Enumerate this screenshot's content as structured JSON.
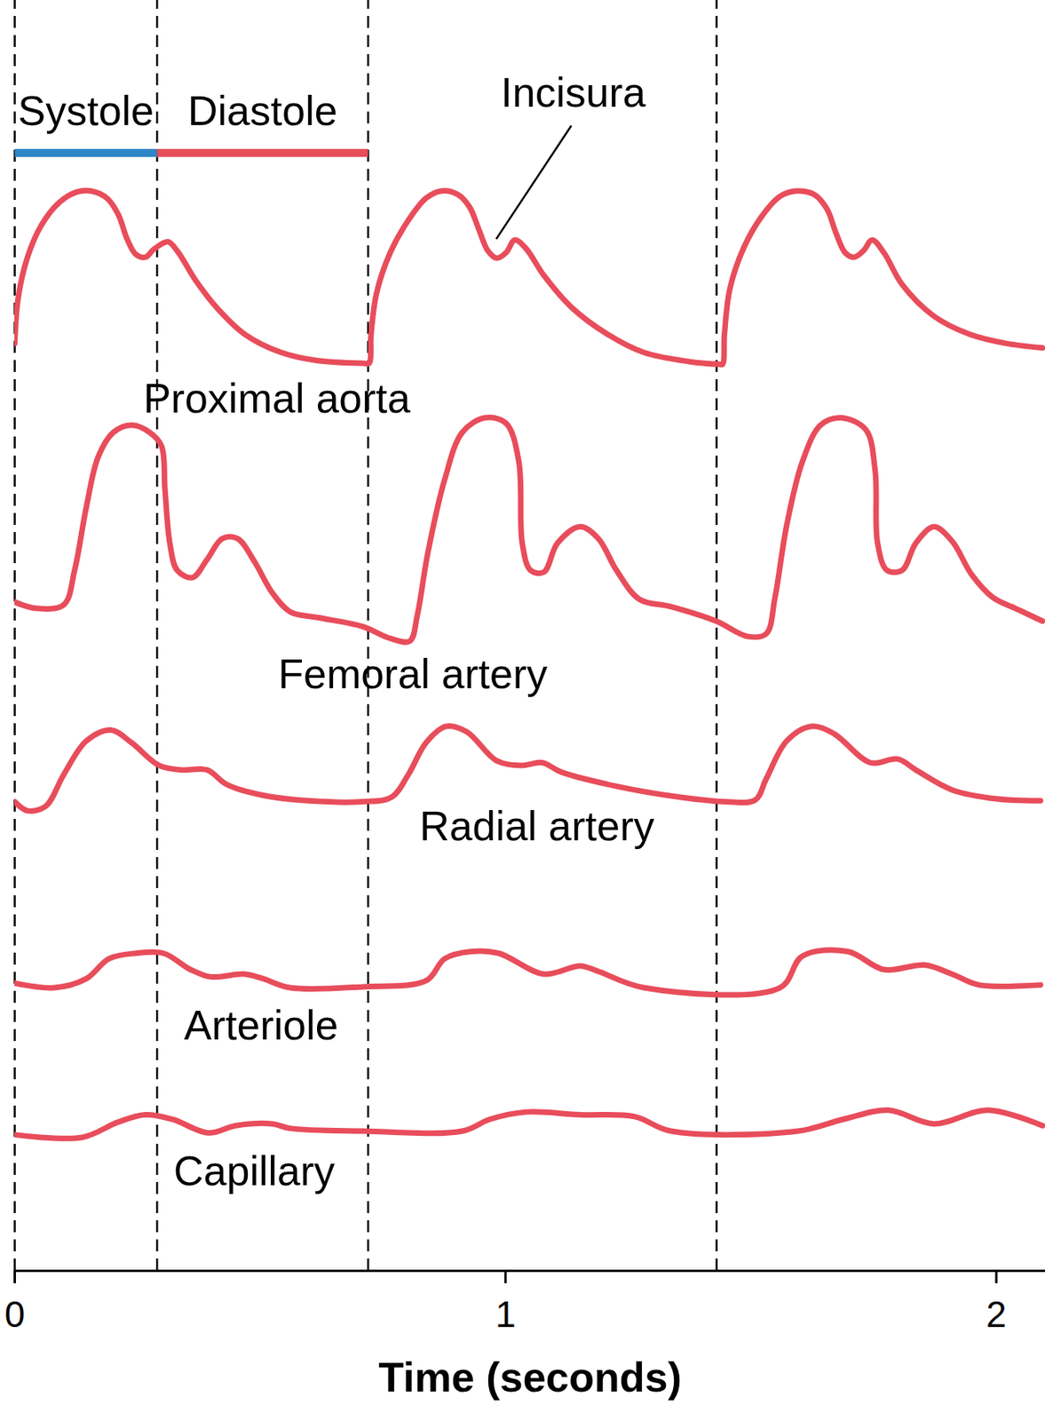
{
  "chart_data": {
    "type": "line",
    "xlabel": "Time (seconds)",
    "xlim": [
      0,
      2.1
    ],
    "xticks": [
      0,
      1,
      2
    ],
    "ylim": [
      0,
      14
    ],
    "yticks": [],
    "tick_labels": "x",
    "grid": false,
    "vlines": [
      0,
      0.29,
      0.72,
      1.43
    ],
    "phases": [
      {
        "name": "Systole",
        "start": 0,
        "end": 0.29,
        "color": "#2e86c8",
        "y": 12.32,
        "label_y": 12.77
      },
      {
        "name": "Diastole",
        "start": 0.29,
        "end": 0.72,
        "color": "#e84d5b",
        "y": 12.32,
        "label_y": 12.77
      }
    ],
    "annotations": [
      {
        "text": "Incisura",
        "x": 1.138,
        "y": 12.97,
        "line_from": [
          1.134,
          12.62
        ],
        "line_to": [
          0.981,
          11.37
        ]
      }
    ],
    "series": [
      {
        "name": "Proximal aorta",
        "color": "#e84d5b",
        "label_x": 0.534,
        "label_y": 9.6,
        "x": [
          0.0,
          0.007,
          0.026,
          0.054,
          0.09,
          0.127,
          0.155,
          0.188,
          0.211,
          0.229,
          0.247,
          0.266,
          0.284,
          0.312,
          0.331,
          0.368,
          0.414,
          0.469,
          0.543,
          0.617,
          0.713,
          0.722,
          0.726,
          0.737,
          0.765,
          0.801,
          0.838,
          0.87,
          0.903,
          0.927,
          0.946,
          0.964,
          0.982,
          1.001,
          1.019,
          1.041,
          1.078,
          1.134,
          1.208,
          1.282,
          1.374,
          1.435,
          1.442,
          1.446,
          1.457,
          1.485,
          1.522,
          1.559,
          1.592,
          1.629,
          1.655,
          1.673,
          1.692,
          1.71,
          1.729,
          1.747,
          1.771,
          1.808,
          1.873,
          1.946,
          2.02,
          2.094
        ],
        "values": [
          10.22,
          10.72,
          11.17,
          11.52,
          11.77,
          11.89,
          11.9,
          11.82,
          11.64,
          11.37,
          11.2,
          11.17,
          11.26,
          11.34,
          11.24,
          10.92,
          10.6,
          10.32,
          10.12,
          10.03,
          10.0,
          10.0,
          10.32,
          10.77,
          11.22,
          11.57,
          11.82,
          11.9,
          11.86,
          11.72,
          11.47,
          11.24,
          11.16,
          11.22,
          11.36,
          11.27,
          10.97,
          10.62,
          10.32,
          10.12,
          10.02,
          9.99,
          9.99,
          10.32,
          10.82,
          11.27,
          11.62,
          11.84,
          11.9,
          11.86,
          11.7,
          11.44,
          11.22,
          11.17,
          11.24,
          11.36,
          11.22,
          10.87,
          10.52,
          10.32,
          10.22,
          10.17
        ]
      },
      {
        "name": "Femoral artery",
        "color": "#e84d5b",
        "label_x": 0.811,
        "label_y": 6.57,
        "x": [
          0,
          0.044,
          0.1,
          0.122,
          0.146,
          0.17,
          0.201,
          0.238,
          0.275,
          0.299,
          0.306,
          0.316,
          0.331,
          0.362,
          0.392,
          0.423,
          0.454,
          0.488,
          0.525,
          0.562,
          0.617,
          0.709,
          0.765,
          0.805,
          0.82,
          0.842,
          0.876,
          0.912,
          0.958,
          1.001,
          1.027,
          1.034,
          1.051,
          1.078,
          1.106,
          1.152,
          1.189,
          1.226,
          1.273,
          1.337,
          1.429,
          1.494,
          1.531,
          1.549,
          1.573,
          1.605,
          1.642,
          1.684,
          1.734,
          1.753,
          1.758,
          1.777,
          1.808,
          1.836,
          1.873,
          1.91,
          1.95,
          1.993,
          2.039,
          2.094
        ],
        "values": [
          7.37,
          7.3,
          7.34,
          7.72,
          8.42,
          8.97,
          9.24,
          9.32,
          9.24,
          9.09,
          8.62,
          8.02,
          7.72,
          7.64,
          7.84,
          8.07,
          8.07,
          7.82,
          7.47,
          7.26,
          7.2,
          7.1,
          6.97,
          6.94,
          7.22,
          7.92,
          8.72,
          9.24,
          9.4,
          9.34,
          8.92,
          8.02,
          7.72,
          7.7,
          8.02,
          8.2,
          8.07,
          7.72,
          7.4,
          7.32,
          7.16,
          6.99,
          7.02,
          7.42,
          8.22,
          8.92,
          9.32,
          9.4,
          9.27,
          8.82,
          8.02,
          7.72,
          7.72,
          8.02,
          8.2,
          8.04,
          7.67,
          7.42,
          7.3,
          7.16
        ]
      },
      {
        "name": "Radial artery",
        "color": "#e84d5b",
        "label_x": 1.064,
        "label_y": 4.89,
        "x": [
          0,
          0.026,
          0.063,
          0.1,
          0.146,
          0.196,
          0.238,
          0.294,
          0.34,
          0.392,
          0.432,
          0.506,
          0.598,
          0.709,
          0.768,
          0.802,
          0.838,
          0.879,
          0.921,
          0.982,
          1.032,
          1.075,
          1.112,
          1.226,
          1.355,
          1.448,
          1.509,
          1.531,
          1.573,
          1.623,
          1.669,
          1.743,
          1.799,
          1.836,
          1.91,
          2.002,
          2.09
        ],
        "values": [
          5.17,
          5.07,
          5.12,
          5.47,
          5.84,
          5.96,
          5.82,
          5.57,
          5.52,
          5.52,
          5.36,
          5.24,
          5.18,
          5.17,
          5.22,
          5.47,
          5.82,
          6.0,
          5.94,
          5.62,
          5.57,
          5.6,
          5.5,
          5.34,
          5.22,
          5.17,
          5.19,
          5.42,
          5.84,
          6.0,
          5.92,
          5.6,
          5.64,
          5.52,
          5.3,
          5.2,
          5.18
        ]
      },
      {
        "name": "Arteriole",
        "color": "#e84d5b",
        "label_x": 0.502,
        "label_y": 2.7,
        "x": [
          0,
          0.081,
          0.146,
          0.192,
          0.247,
          0.303,
          0.358,
          0.399,
          0.469,
          0.506,
          0.561,
          0.709,
          0.839,
          0.876,
          0.931,
          0.986,
          1.078,
          1.152,
          1.189,
          1.282,
          1.559,
          1.605,
          1.697,
          1.771,
          1.854,
          1.91,
          1.965,
          2.09
        ],
        "values": [
          3.17,
          3.12,
          3.22,
          3.44,
          3.5,
          3.5,
          3.32,
          3.24,
          3.27,
          3.22,
          3.12,
          3.13,
          3.2,
          3.44,
          3.52,
          3.5,
          3.27,
          3.36,
          3.3,
          3.12,
          3.12,
          3.47,
          3.52,
          3.32,
          3.37,
          3.27,
          3.15,
          3.15
        ]
      },
      {
        "name": "Capillary",
        "color": "#e84d5b",
        "label_x": 0.488,
        "label_y": 1.09,
        "x": [
          0,
          0.137,
          0.211,
          0.266,
          0.321,
          0.395,
          0.45,
          0.525,
          0.561,
          0.709,
          0.912,
          0.968,
          1.041,
          1.152,
          1.263,
          1.337,
          1.596,
          1.688,
          1.78,
          1.873,
          1.983,
          2.094
        ],
        "values": [
          1.5,
          1.47,
          1.64,
          1.72,
          1.67,
          1.52,
          1.6,
          1.62,
          1.57,
          1.54,
          1.54,
          1.67,
          1.75,
          1.72,
          1.7,
          1.54,
          1.54,
          1.67,
          1.77,
          1.62,
          1.77,
          1.6
        ]
      }
    ]
  }
}
